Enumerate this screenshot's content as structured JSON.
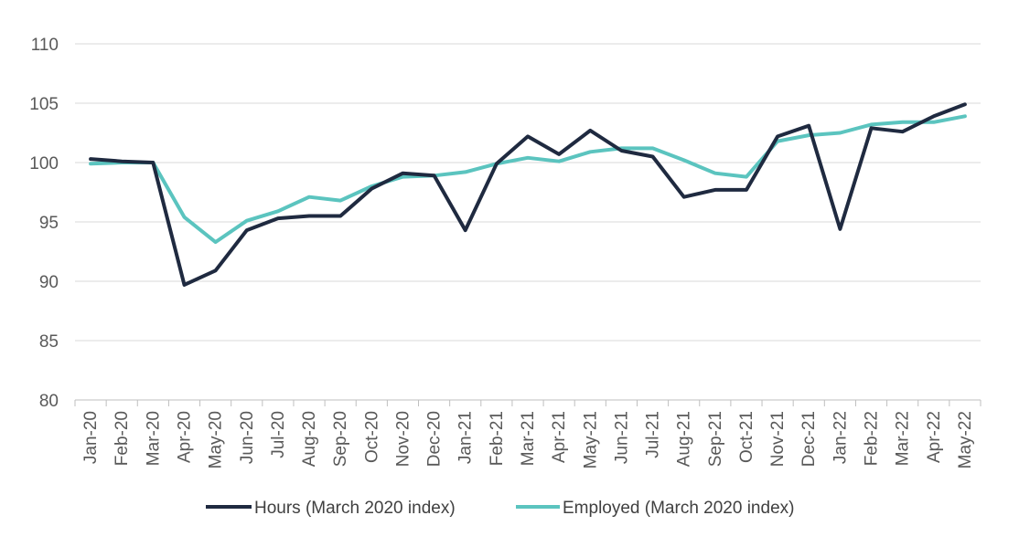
{
  "chart_data": {
    "type": "line",
    "title": "",
    "xlabel": "",
    "ylabel": "",
    "ylim": [
      80,
      110
    ],
    "yticks": [
      80,
      85,
      90,
      95,
      100,
      105,
      110
    ],
    "grid": true,
    "legend_position": "bottom",
    "categories": [
      "Jan-20",
      "Feb-20",
      "Mar-20",
      "Apr-20",
      "May-20",
      "Jun-20",
      "Jul-20",
      "Aug-20",
      "Sep-20",
      "Oct-20",
      "Nov-20",
      "Dec-20",
      "Jan-21",
      "Feb-21",
      "Mar-21",
      "Apr-21",
      "May-21",
      "Jun-21",
      "Jul-21",
      "Aug-21",
      "Sep-21",
      "Oct-21",
      "Nov-21",
      "Dec-21",
      "Jan-22",
      "Feb-22",
      "Mar-22",
      "Apr-22",
      "May-22"
    ],
    "series": [
      {
        "name": "Hours (March 2020 index)",
        "color": "#1f2a40",
        "values": [
          100.3,
          100.1,
          100.0,
          89.7,
          90.9,
          94.3,
          95.3,
          95.5,
          95.5,
          97.8,
          99.1,
          98.9,
          94.3,
          99.9,
          102.2,
          100.7,
          102.7,
          101.0,
          100.5,
          97.1,
          97.7,
          97.7,
          102.2,
          103.1,
          94.4,
          102.9,
          102.6,
          103.9,
          104.9
        ]
      },
      {
        "name": "Employed (March 2020 index)",
        "color": "#5bc4bf",
        "values": [
          99.9,
          100.0,
          100.0,
          95.4,
          93.3,
          95.1,
          95.9,
          97.1,
          96.8,
          98.0,
          98.8,
          98.9,
          99.2,
          99.9,
          100.4,
          100.1,
          100.9,
          101.2,
          101.2,
          100.2,
          99.1,
          98.8,
          101.8,
          102.3,
          102.5,
          103.2,
          103.4,
          103.4,
          103.9
        ]
      }
    ]
  }
}
